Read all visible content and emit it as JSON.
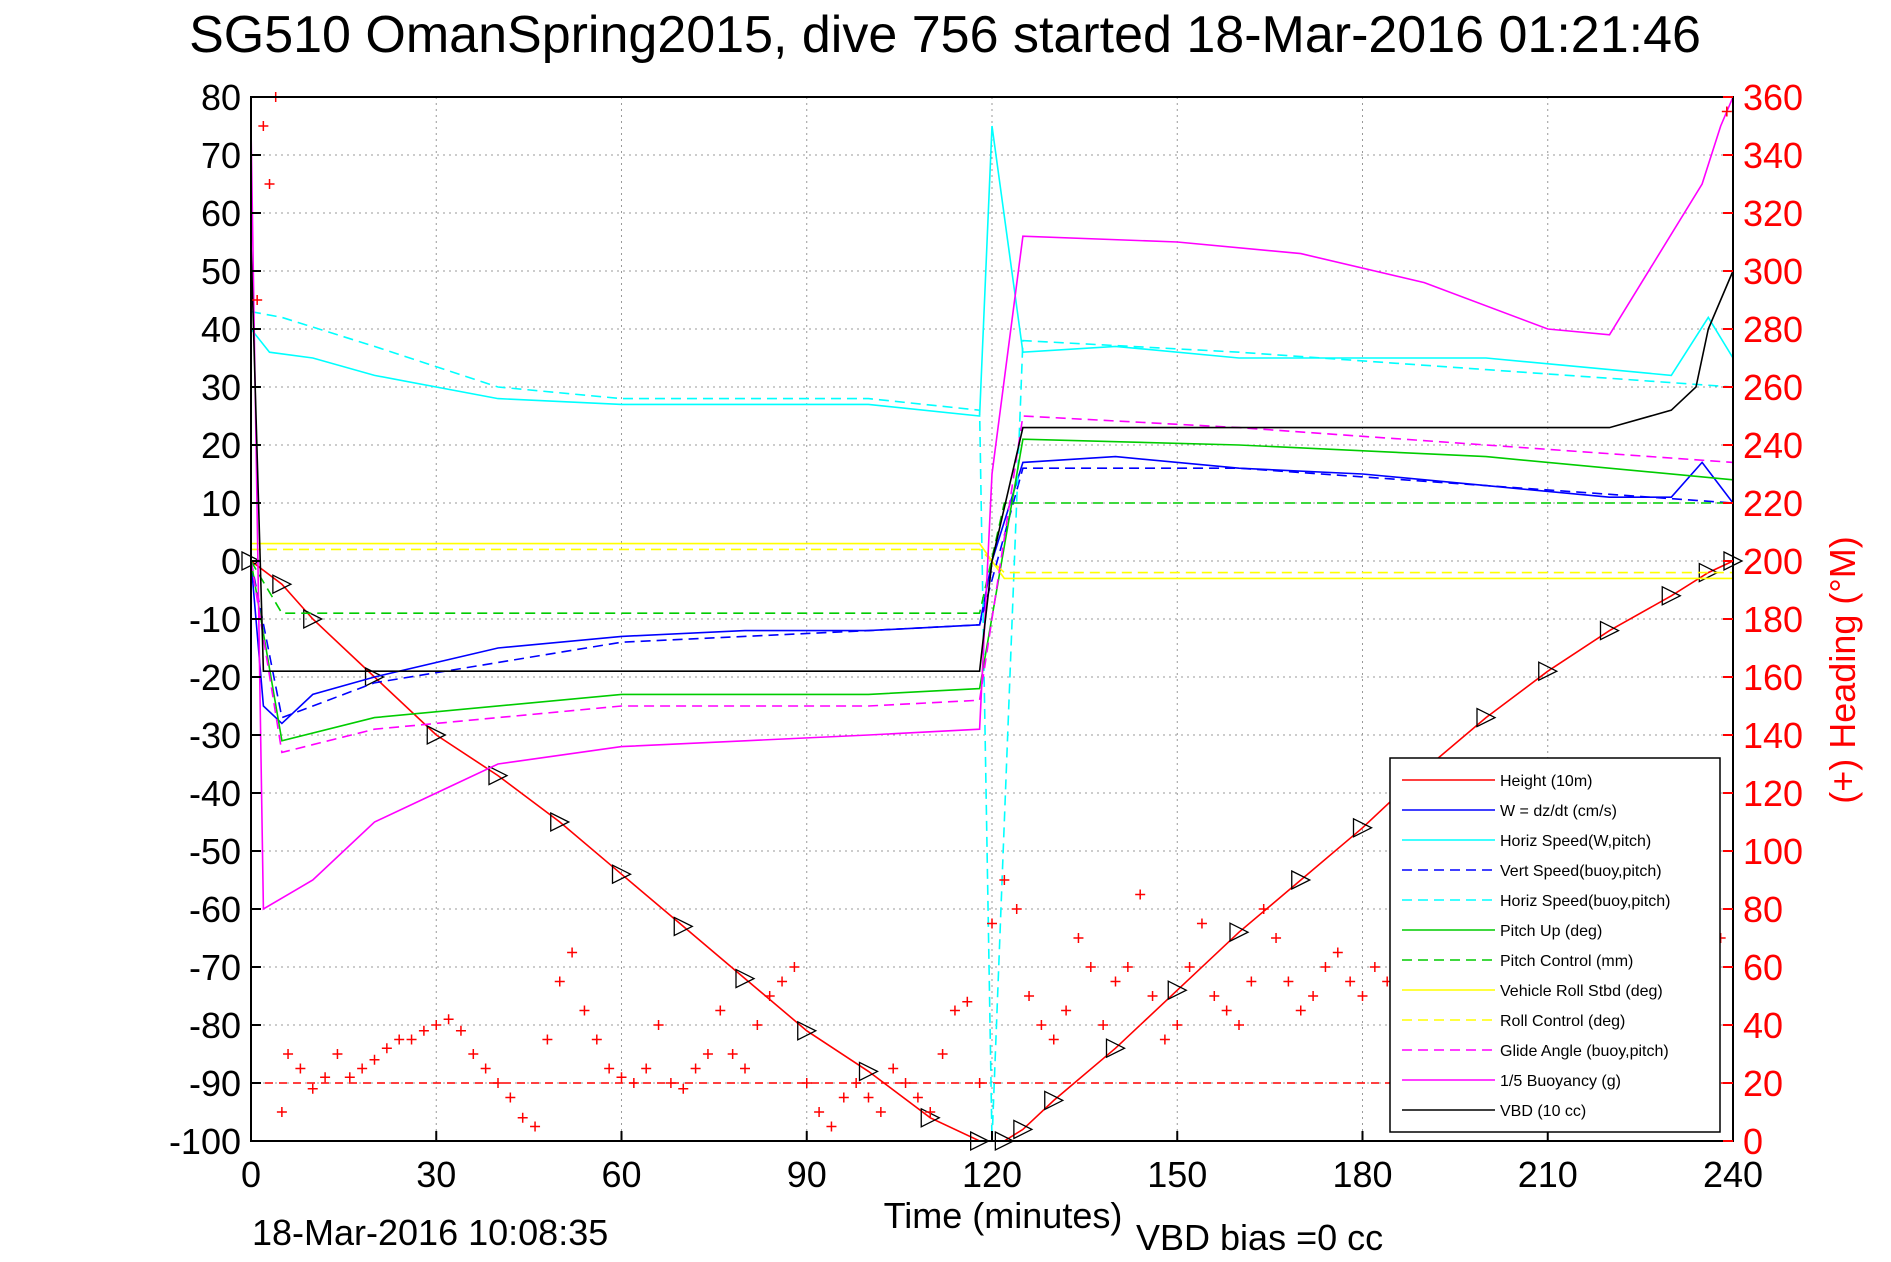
{
  "title": "SG510 OmanSpring2015, dive 756 started 18-Mar-2016 01:21:46",
  "footer_timestamp": "18-Mar-2016 10:08:35",
  "vbd_bias": "VBD bias =0 cc",
  "colors": {
    "red": "#ff0000",
    "blue": "#0000ff",
    "cyan": "#00ffff",
    "green": "#00cc00",
    "yellow": "#ffff00",
    "magenta": "#ff00ff",
    "black": "#000000"
  },
  "chart_data": {
    "type": "line",
    "xlabel": "Time (minutes)",
    "ylabel_right": "(+) Heading (°M)",
    "xlim": [
      0,
      240
    ],
    "ylim": [
      -100,
      80
    ],
    "ylim_right": [
      0,
      360
    ],
    "xticks": [
      "0",
      "30",
      "60",
      "90",
      "120",
      "150",
      "180",
      "210",
      "240"
    ],
    "yticks": [
      "80",
      "70",
      "60",
      "50",
      "40",
      "30",
      "20",
      "10",
      "0",
      "-10",
      "-20",
      "-30",
      "-40",
      "-50",
      "-60",
      "-70",
      "-80",
      "-90",
      "-100"
    ],
    "yticks_right": [
      "360",
      "340",
      "320",
      "300",
      "280",
      "260",
      "240",
      "220",
      "200",
      "180",
      "160",
      "140",
      "120",
      "100",
      "80",
      "60",
      "40",
      "20",
      "0"
    ],
    "grid": true,
    "legend_position": "bottom-right",
    "series": [
      {
        "name": "Height (10m)",
        "color": "red",
        "style": "solid",
        "markers": true,
        "x": [
          0,
          5,
          10,
          20,
          30,
          40,
          50,
          60,
          70,
          80,
          90,
          100,
          110,
          118,
          122,
          125,
          130,
          140,
          150,
          160,
          170,
          180,
          190,
          200,
          210,
          220,
          230,
          236,
          240
        ],
        "y": [
          0,
          -4,
          -10,
          -20,
          -30,
          -37,
          -45,
          -54,
          -63,
          -72,
          -81,
          -88,
          -96,
          -100,
          -100,
          -98,
          -93,
          -84,
          -74,
          -64,
          -55,
          -46,
          -36,
          -27,
          -19,
          -12,
          -6,
          -2,
          0
        ]
      },
      {
        "name": "W = dz/dt (cm/s)",
        "color": "blue",
        "style": "solid",
        "x": [
          0,
          2,
          5,
          10,
          20,
          40,
          60,
          80,
          100,
          118,
          120,
          125,
          140,
          160,
          180,
          200,
          220,
          230,
          235,
          240
        ],
        "y": [
          0,
          -25,
          -28,
          -23,
          -20,
          -15,
          -13,
          -12,
          -12,
          -11,
          0,
          17,
          18,
          16,
          15,
          13,
          11,
          11,
          17,
          10
        ]
      },
      {
        "name": "Horiz Speed(W,pitch)",
        "color": "cyan",
        "style": "solid",
        "x": [
          0,
          3,
          10,
          20,
          40,
          60,
          80,
          100,
          118,
          120,
          125,
          140,
          160,
          180,
          200,
          220,
          230,
          236,
          240
        ],
        "y": [
          40,
          36,
          35,
          32,
          28,
          27,
          27,
          27,
          25,
          75,
          36,
          37,
          35,
          35,
          35,
          33,
          32,
          42,
          35
        ]
      },
      {
        "name": "Vert Speed(buoy,pitch)",
        "color": "blue",
        "style": "dashed",
        "x": [
          0,
          5,
          20,
          60,
          100,
          118,
          125,
          160,
          200,
          240
        ],
        "y": [
          0,
          -27,
          -21,
          -14,
          -12,
          -11,
          16,
          16,
          13,
          10
        ]
      },
      {
        "name": "Horiz Speed(buoy,pitch)",
        "color": "cyan",
        "style": "dashed",
        "x": [
          0,
          5,
          20,
          40,
          60,
          80,
          100,
          118,
          120,
          125,
          160,
          200,
          240
        ],
        "y": [
          43,
          42,
          37,
          30,
          28,
          28,
          28,
          26,
          -100,
          38,
          36,
          33,
          30
        ]
      },
      {
        "name": "Pitch Up (deg)",
        "color": "green",
        "style": "solid",
        "x": [
          0,
          5,
          20,
          60,
          100,
          118,
          125,
          160,
          200,
          240
        ],
        "y": [
          0,
          -31,
          -27,
          -23,
          -23,
          -22,
          21,
          20,
          18,
          14
        ]
      },
      {
        "name": "Pitch Control (mm)",
        "color": "green",
        "style": "dashed",
        "x": [
          0,
          5,
          118,
          122,
          240
        ],
        "y": [
          0,
          -9,
          -9,
          10,
          10
        ]
      },
      {
        "name": "Vehicle Roll Stbd (deg)",
        "color": "yellow",
        "style": "solid",
        "x": [
          0,
          118,
          122,
          240
        ],
        "y": [
          3,
          3,
          -3,
          -3
        ]
      },
      {
        "name": "Roll Control (deg)",
        "color": "yellow",
        "style": "dashed",
        "x": [
          0,
          118,
          122,
          240
        ],
        "y": [
          2,
          2,
          -2,
          -2
        ]
      },
      {
        "name": "Glide Angle (buoy,pitch)",
        "color": "magenta",
        "style": "dashed",
        "x": [
          0,
          5,
          20,
          60,
          100,
          118,
          125,
          160,
          200,
          240
        ],
        "y": [
          0,
          -33,
          -29,
          -25,
          -25,
          -24,
          25,
          23,
          20,
          17
        ]
      },
      {
        "name": "1/5 Buoyancy (g)",
        "color": "magenta",
        "style": "solid",
        "x": [
          0,
          2,
          10,
          20,
          30,
          40,
          60,
          80,
          100,
          118,
          120,
          125,
          150,
          170,
          190,
          210,
          220,
          235,
          238,
          240
        ],
        "y": [
          75,
          -60,
          -55,
          -45,
          -40,
          -35,
          -32,
          -31,
          -30,
          -29,
          15,
          56,
          55,
          53,
          48,
          40,
          39,
          65,
          75,
          80
        ]
      },
      {
        "name": "VBD (10 cc)",
        "color": "black",
        "style": "solid",
        "x": [
          0,
          2,
          118,
          120,
          125,
          200,
          220,
          230,
          234,
          236,
          240
        ],
        "y": [
          55,
          -19,
          -19,
          0,
          23,
          23,
          23,
          26,
          30,
          40,
          50
        ]
      }
    ],
    "heading_dashed_y": 20,
    "heading": {
      "name": "Heading",
      "color": "red",
      "marker": "+",
      "x": [
        1,
        2,
        3,
        4,
        5,
        6,
        8,
        10,
        12,
        14,
        16,
        18,
        20,
        22,
        24,
        26,
        28,
        30,
        32,
        34,
        36,
        38,
        40,
        42,
        44,
        46,
        48,
        50,
        52,
        54,
        56,
        58,
        60,
        62,
        64,
        66,
        68,
        70,
        72,
        74,
        76,
        78,
        80,
        82,
        84,
        86,
        88,
        90,
        92,
        94,
        96,
        98,
        100,
        102,
        104,
        106,
        108,
        110,
        112,
        114,
        116,
        118,
        120,
        122,
        124,
        126,
        128,
        130,
        132,
        134,
        136,
        138,
        140,
        142,
        144,
        146,
        148,
        150,
        152,
        154,
        156,
        158,
        160,
        162,
        164,
        166,
        168,
        170,
        172,
        174,
        176,
        178,
        180,
        182,
        184,
        186,
        188,
        190,
        192,
        194,
        196,
        198,
        200,
        202,
        204,
        206,
        208,
        210,
        212,
        214,
        216,
        218,
        220,
        222,
        224,
        226,
        228,
        230,
        232,
        234,
        236,
        238,
        239
      ],
      "y": [
        290,
        350,
        330,
        360,
        10,
        30,
        25,
        18,
        22,
        30,
        22,
        25,
        28,
        32,
        35,
        35,
        38,
        40,
        42,
        38,
        30,
        25,
        20,
        15,
        8,
        5,
        35,
        55,
        65,
        45,
        35,
        25,
        22,
        20,
        25,
        40,
        20,
        18,
        25,
        30,
        45,
        30,
        25,
        40,
        50,
        55,
        60,
        20,
        10,
        5,
        15,
        20,
        15,
        10,
        25,
        20,
        15,
        10,
        30,
        45,
        48,
        20,
        75,
        90,
        80,
        50,
        40,
        35,
        45,
        70,
        60,
        40,
        55,
        60,
        85,
        50,
        35,
        40,
        60,
        75,
        50,
        45,
        40,
        55,
        80,
        70,
        55,
        45,
        50,
        60,
        65,
        55,
        50,
        60,
        55,
        50,
        60,
        65,
        70,
        75,
        80,
        70,
        65,
        80,
        85,
        60,
        75,
        70,
        65,
        80,
        70,
        75,
        80,
        85,
        80,
        75,
        80,
        70,
        60,
        70,
        80,
        70,
        355
      ]
    }
  }
}
